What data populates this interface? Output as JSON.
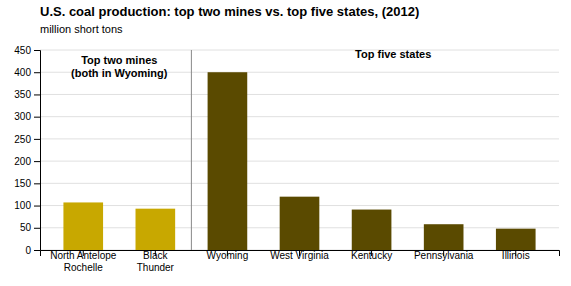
{
  "chart_data": {
    "type": "bar",
    "title": "U.S. coal production: top two mines vs. top five states, (2012)",
    "subtitle": "million short tons",
    "categories": [
      "North Antelope\nRochelle",
      "Black\nThunder",
      "Wyoming",
      "West Virginia",
      "Kentucky",
      "Pennsylvania",
      "Illinois"
    ],
    "values": [
      107,
      93,
      400,
      120,
      91,
      58,
      48
    ],
    "colors": [
      "#c8a800",
      "#c8a800",
      "#5a4a00",
      "#5a4a00",
      "#5a4a00",
      "#5a4a00",
      "#5a4a00"
    ],
    "ylim": [
      0,
      450
    ],
    "yticks": [
      0,
      50,
      100,
      150,
      200,
      250,
      300,
      350,
      400,
      450
    ],
    "grid": true,
    "annotations": [
      "Top two mines\n(both in Wyoming)",
      "Top five states"
    ]
  }
}
